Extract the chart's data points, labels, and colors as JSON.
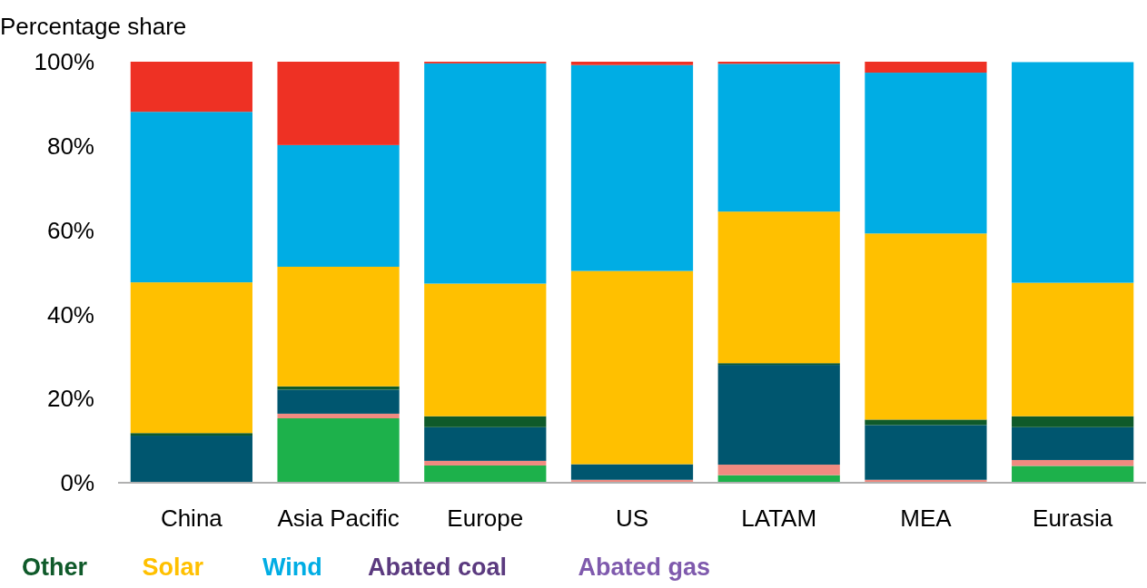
{
  "chart_data": {
    "type": "bar",
    "stacked": true,
    "ylabel": "Percentage share",
    "categories": [
      "China",
      "Asia Pacific",
      "Europe",
      "US",
      "LATAM",
      "MEA",
      "Eurasia"
    ],
    "series": [
      {
        "color": "#1db14b",
        "values": [
          0,
          15.3,
          4.1,
          0,
          1.8,
          0.2,
          4.0
        ]
      },
      {
        "color": "#f08a80",
        "values": [
          0,
          1.1,
          1.1,
          0.7,
          2.5,
          0.5,
          1.4
        ]
      },
      {
        "color": "#00566f",
        "values": [
          11.2,
          5.7,
          8.0,
          3.7,
          23.7,
          13.0,
          7.8
        ]
      },
      {
        "name": "Other",
        "color": "#0f5a2a",
        "values": [
          0.6,
          0.8,
          2.6,
          0,
          0.4,
          1.3,
          2.6
        ]
      },
      {
        "name": "Solar",
        "color": "#ffc000",
        "values": [
          35.8,
          28.4,
          31.5,
          45.9,
          36.0,
          44.2,
          31.7
        ]
      },
      {
        "name": "Wind",
        "color": "#00ade4",
        "values": [
          40.5,
          28.9,
          52.3,
          48.9,
          35.1,
          38.2,
          52.4
        ]
      },
      {
        "color": "#ee3124",
        "values": [
          11.9,
          19.8,
          0.4,
          0.8,
          0.5,
          2.6,
          null
        ]
      },
      {
        "name": "Abated coal",
        "color": "#5b3a7f",
        "values": [
          null,
          null,
          null,
          null,
          null,
          null,
          null
        ]
      },
      {
        "name": "Abated gas",
        "color": "#7f5aad",
        "values": [
          null,
          null,
          null,
          null,
          null,
          null,
          null
        ]
      }
    ],
    "ylim": [
      0,
      100
    ],
    "yticks": [
      {
        "value": 0,
        "label": "0%"
      },
      {
        "value": 20,
        "label": "20%"
      },
      {
        "value": 40,
        "label": "40%"
      },
      {
        "value": 60,
        "label": "60%"
      },
      {
        "value": 80,
        "label": "80%"
      },
      {
        "value": 100,
        "label": "100%"
      }
    ],
    "grid": false,
    "legend": "bottom"
  }
}
